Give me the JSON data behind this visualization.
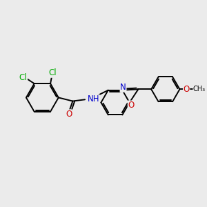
{
  "bg": "#ebebeb",
  "bond_color": "#000000",
  "lw": 1.4,
  "atom_colors": {
    "N": "#0000cc",
    "O": "#cc0000",
    "Cl": "#00aa00"
  },
  "fs": 8.5
}
